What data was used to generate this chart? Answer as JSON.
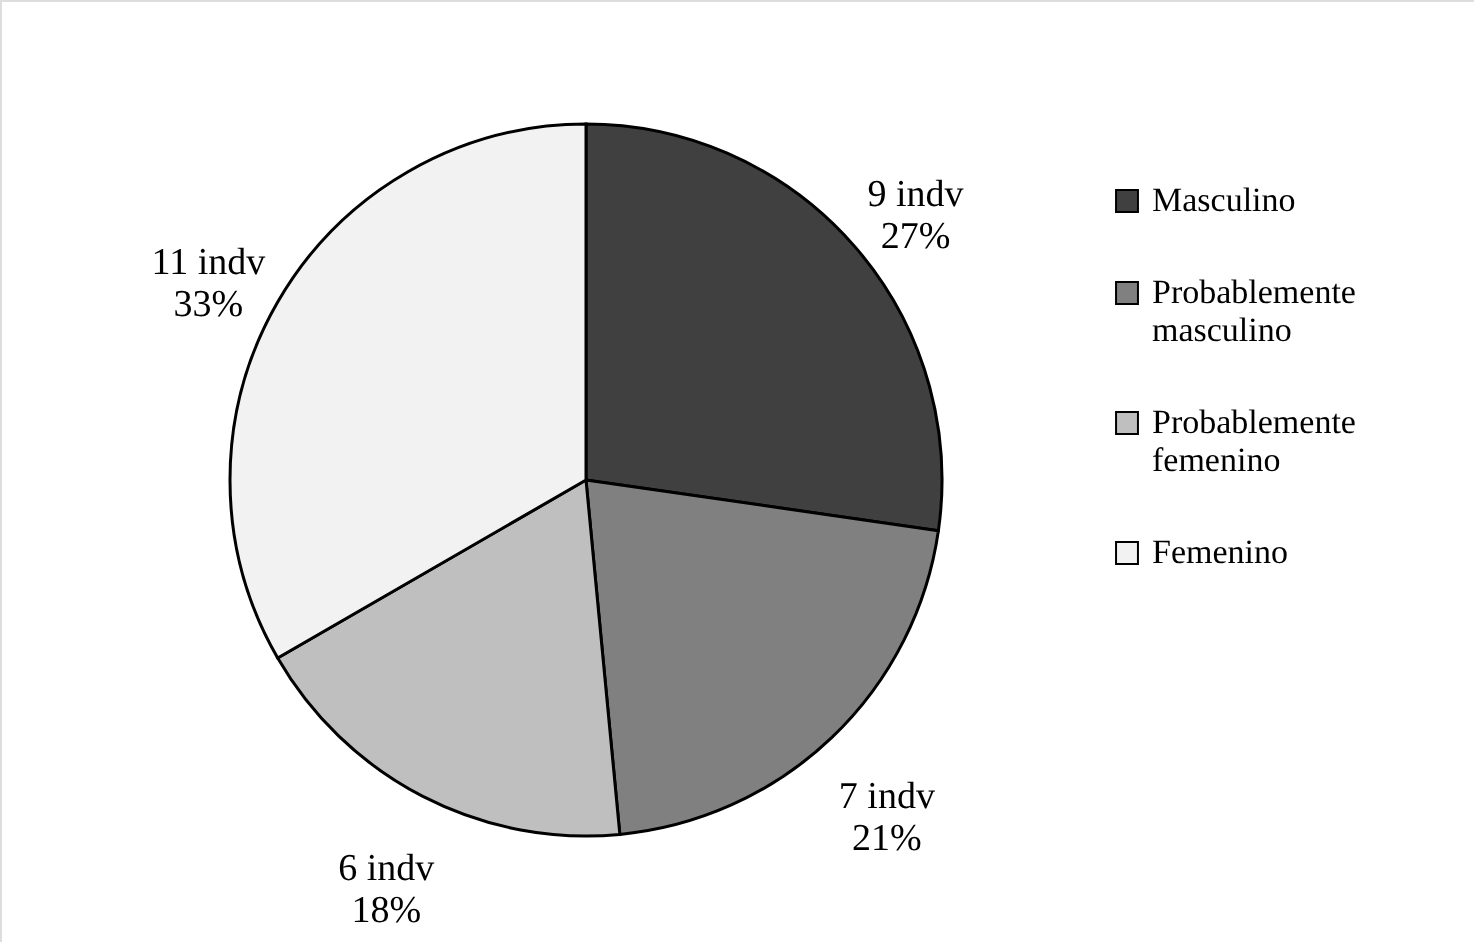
{
  "chart_data": {
    "type": "pie",
    "categories": [
      "Masculino",
      "Probablemente masculino",
      "Probablemente femenino",
      "Femenino"
    ],
    "values": [
      9,
      7,
      6,
      11
    ],
    "colors": [
      "#404040",
      "#808080",
      "#bfbfbf",
      "#f2f2f2"
    ],
    "value_labels": [
      "9 indv\n27%",
      "7 indv\n21%",
      "6 indv\n18%",
      "11 indv\n33%"
    ],
    "legend": "right"
  }
}
